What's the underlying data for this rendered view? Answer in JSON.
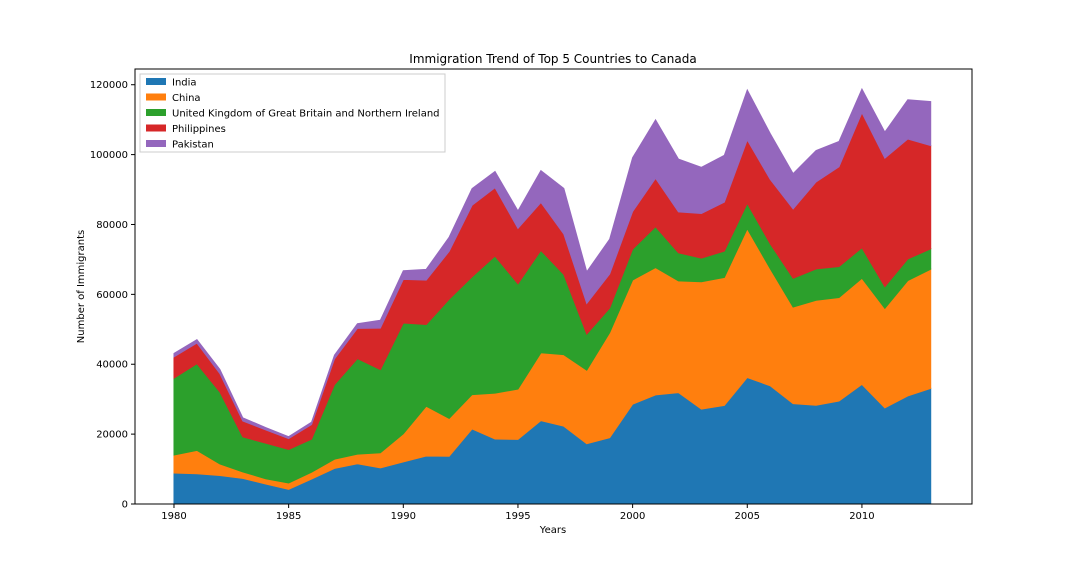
{
  "chart_data": {
    "type": "area",
    "stacked": true,
    "title": "Immigration Trend of Top 5 Countries to Canada",
    "xlabel": "Years",
    "ylabel": "Number of Immigrants",
    "xlim": [
      1978.3,
      2014.8
    ],
    "ylim": [
      0,
      124500
    ],
    "xticks": [
      1980,
      1985,
      1990,
      1995,
      2000,
      2005,
      2010
    ],
    "yticks": [
      0,
      20000,
      40000,
      60000,
      80000,
      100000,
      120000
    ],
    "grid": false,
    "legend_position": "upper left",
    "x": [
      1980,
      1981,
      1982,
      1983,
      1984,
      1985,
      1986,
      1987,
      1988,
      1989,
      1990,
      1991,
      1992,
      1993,
      1994,
      1995,
      1996,
      1997,
      1998,
      1999,
      2000,
      2001,
      2002,
      2003,
      2004,
      2005,
      2006,
      2007,
      2008,
      2009,
      2010,
      2011,
      2012,
      2013
    ],
    "series": [
      {
        "name": "India",
        "color": "#1f77b4",
        "values": [
          8880,
          8670,
          8147,
          7338,
          5704,
          4211,
          7150,
          10189,
          11522,
          10343,
          12041,
          13734,
          13673,
          21496,
          18620,
          18489,
          23859,
          22268,
          17241,
          18974,
          28572,
          31223,
          31889,
          27155,
          28235,
          36210,
          33848,
          28742,
          28261,
          29456,
          34235,
          27509,
          30933,
          33087
        ]
      },
      {
        "name": "China",
        "color": "#ff7f0e",
        "values": [
          5123,
          6682,
          3308,
          1863,
          1527,
          1816,
          1960,
          2643,
          2758,
          4323,
          8076,
          14255,
          10846,
          9817,
          13128,
          14398,
          19415,
          20475,
          21049,
          30069,
          35529,
          36434,
          31961,
          36439,
          36619,
          42584,
          33518,
          27642,
          30037,
          29622,
          30391,
          28502,
          33024,
          34129
        ]
      },
      {
        "name": "United Kingdom of Great Britain and Northern Ireland",
        "color": "#2ca02c",
        "values": [
          22045,
          24796,
          20620,
          10015,
          10170,
          9564,
          9470,
          21337,
          27359,
          23795,
          31668,
          23380,
          34123,
          33720,
          39231,
          30145,
          29322,
          22965,
          10367,
          7045,
          8840,
          11728,
          8046,
          6797,
          7533,
          7258,
          7140,
          8216,
          8979,
          8876,
          8724,
          6204,
          6195,
          5827
        ]
      },
      {
        "name": "Philippines",
        "color": "#d62728",
        "values": [
          6051,
          5921,
          5249,
          4562,
          3801,
          3150,
          4166,
          7360,
          8639,
          11865,
          12509,
          12718,
          13670,
          20479,
          19532,
          15864,
          13692,
          11549,
          8735,
          9734,
          10763,
          13836,
          11707,
          12758,
          14004,
          18139,
          18400,
          19837,
          24887,
          28573,
          38617,
          36765,
          34315,
          29544
        ]
      },
      {
        "name": "Pakistan",
        "color": "#9467bd",
        "values": [
          978,
          972,
          1201,
          900,
          668,
          514,
          691,
          1072,
          1334,
          2261,
          2470,
          3079,
          4071,
          4777,
          4666,
          4994,
          9125,
          13073,
          9068,
          9979,
          15400,
          16708,
          15110,
          13205,
          13399,
          14314,
          13127,
          10124,
          8994,
          7217,
          6811,
          7468,
          11227,
          12603
        ]
      }
    ]
  }
}
